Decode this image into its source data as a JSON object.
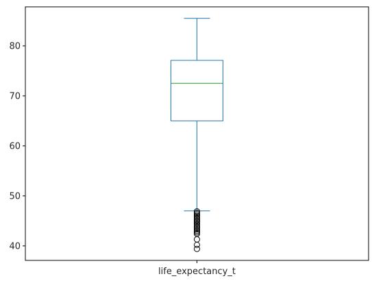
{
  "chart_data": {
    "type": "box",
    "categories": [
      "life_expectancy_t"
    ],
    "boxes": [
      {
        "label": "life_expectancy_t",
        "whisker_low": 47.0,
        "q1": 65.0,
        "median": 72.5,
        "q3": 77.1,
        "whisker_high": 85.5,
        "outliers": [
          46.9,
          46.6,
          46.3,
          46.0,
          45.7,
          45.4,
          45.1,
          44.8,
          44.5,
          44.2,
          43.9,
          43.6,
          43.3,
          43.0,
          42.7,
          42.4,
          41.3,
          40.2,
          39.4
        ]
      }
    ],
    "y_ticks": [
      40,
      50,
      60,
      70,
      80
    ],
    "ylim": [
      37.1,
      87.8
    ],
    "title": "",
    "xlabel": "",
    "ylabel": "",
    "grid": false,
    "colors": {
      "box": "#1f77b4",
      "median": "#2ca02c",
      "outlier": "#000000",
      "axes": "#000000"
    }
  }
}
